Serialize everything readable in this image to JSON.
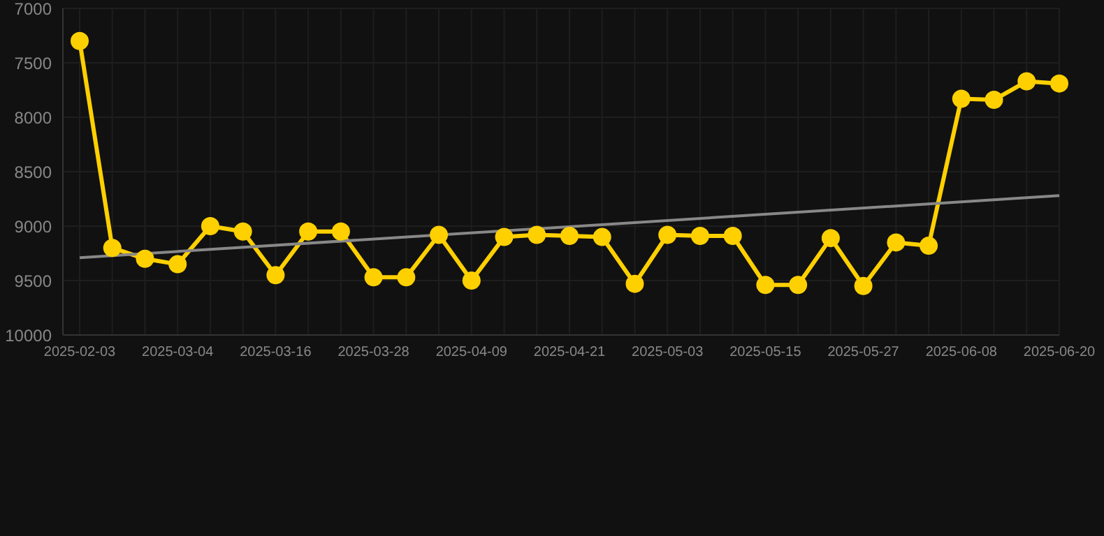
{
  "chart_data": {
    "type": "line",
    "categories": [
      "2025-02-03",
      null,
      null,
      "2025-03-04",
      null,
      null,
      "2025-03-16",
      null,
      null,
      "2025-03-28",
      null,
      null,
      "2025-04-09",
      null,
      null,
      "2025-04-21",
      null,
      null,
      "2025-05-03",
      null,
      null,
      "2025-05-15",
      null,
      null,
      "2025-05-27",
      null,
      null,
      "2025-06-08",
      null,
      null,
      "2025-06-20"
    ],
    "series": [
      {
        "color": "#ffd000",
        "marker": "circle",
        "values": [
          7300,
          9200,
          9300,
          9350,
          9000,
          9050,
          9450,
          9050,
          9050,
          9470,
          9470,
          9080,
          9500,
          9100,
          9080,
          9090,
          9100,
          9530,
          9080,
          9090,
          9090,
          9540,
          9540,
          9110,
          9550,
          9150,
          9180,
          7830,
          7840,
          7670,
          7690
        ]
      },
      {
        "type": "line",
        "color": "#888888",
        "marker": "none",
        "values": [
          9290,
          null,
          null,
          null,
          null,
          null,
          null,
          null,
          null,
          null,
          null,
          null,
          null,
          null,
          null,
          null,
          null,
          null,
          null,
          null,
          null,
          null,
          null,
          null,
          null,
          null,
          null,
          null,
          null,
          null,
          8720
        ]
      }
    ],
    "ylim": [
      10000,
      7000
    ],
    "yticks": [
      7000,
      7500,
      8000,
      8500,
      9000,
      9500,
      10000
    ],
    "grid": true
  }
}
